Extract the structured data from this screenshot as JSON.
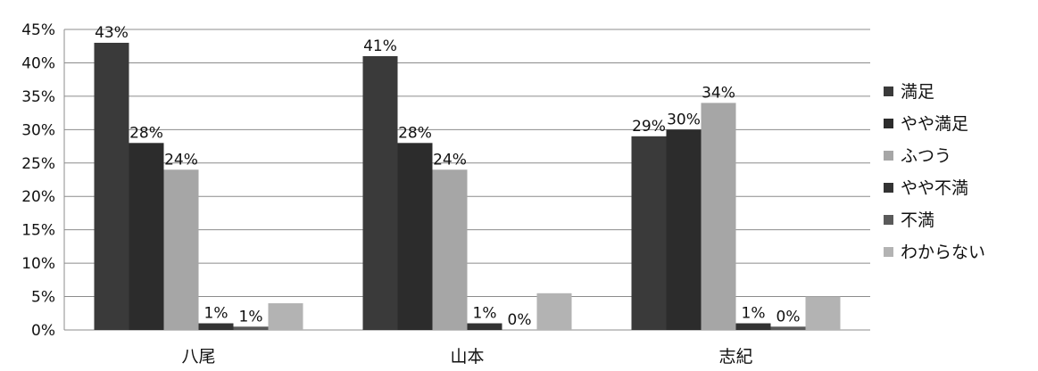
{
  "chart_data": {
    "type": "bar",
    "categories": [
      "八尾",
      "山本",
      "志紀"
    ],
    "series": [
      {
        "name": "満足",
        "values": [
          43,
          41,
          29
        ],
        "labels": [
          "43%",
          "41%",
          "29%"
        ],
        "color": "#3a3a3a"
      },
      {
        "name": "やや満足",
        "values": [
          28,
          28,
          30
        ],
        "labels": [
          "28%",
          "28%",
          "30%"
        ],
        "color": "#2c2c2c"
      },
      {
        "name": "ふつう",
        "values": [
          24,
          24,
          34
        ],
        "labels": [
          "24%",
          "24%",
          "34%"
        ],
        "color": "#a6a6a6"
      },
      {
        "name": "やや不満",
        "values": [
          1,
          1,
          1
        ],
        "labels": [
          "1%",
          "1%",
          "1%"
        ],
        "color": "#333333"
      },
      {
        "name": "不満",
        "values": [
          0.5,
          0,
          0.5
        ],
        "labels": [
          "1%",
          "0%",
          "0%"
        ],
        "color": "#5a5a5a"
      },
      {
        "name": "わからない",
        "values": [
          4,
          5.5,
          5
        ],
        "labels": [
          "",
          "",
          ""
        ],
        "color": "#b3b3b3"
      }
    ],
    "yticks": [
      "0%",
      "5%",
      "10%",
      "15%",
      "20%",
      "25%",
      "30%",
      "35%",
      "40%",
      "45%"
    ],
    "ylim": [
      0,
      45
    ],
    "grid": true,
    "legend": "right"
  }
}
